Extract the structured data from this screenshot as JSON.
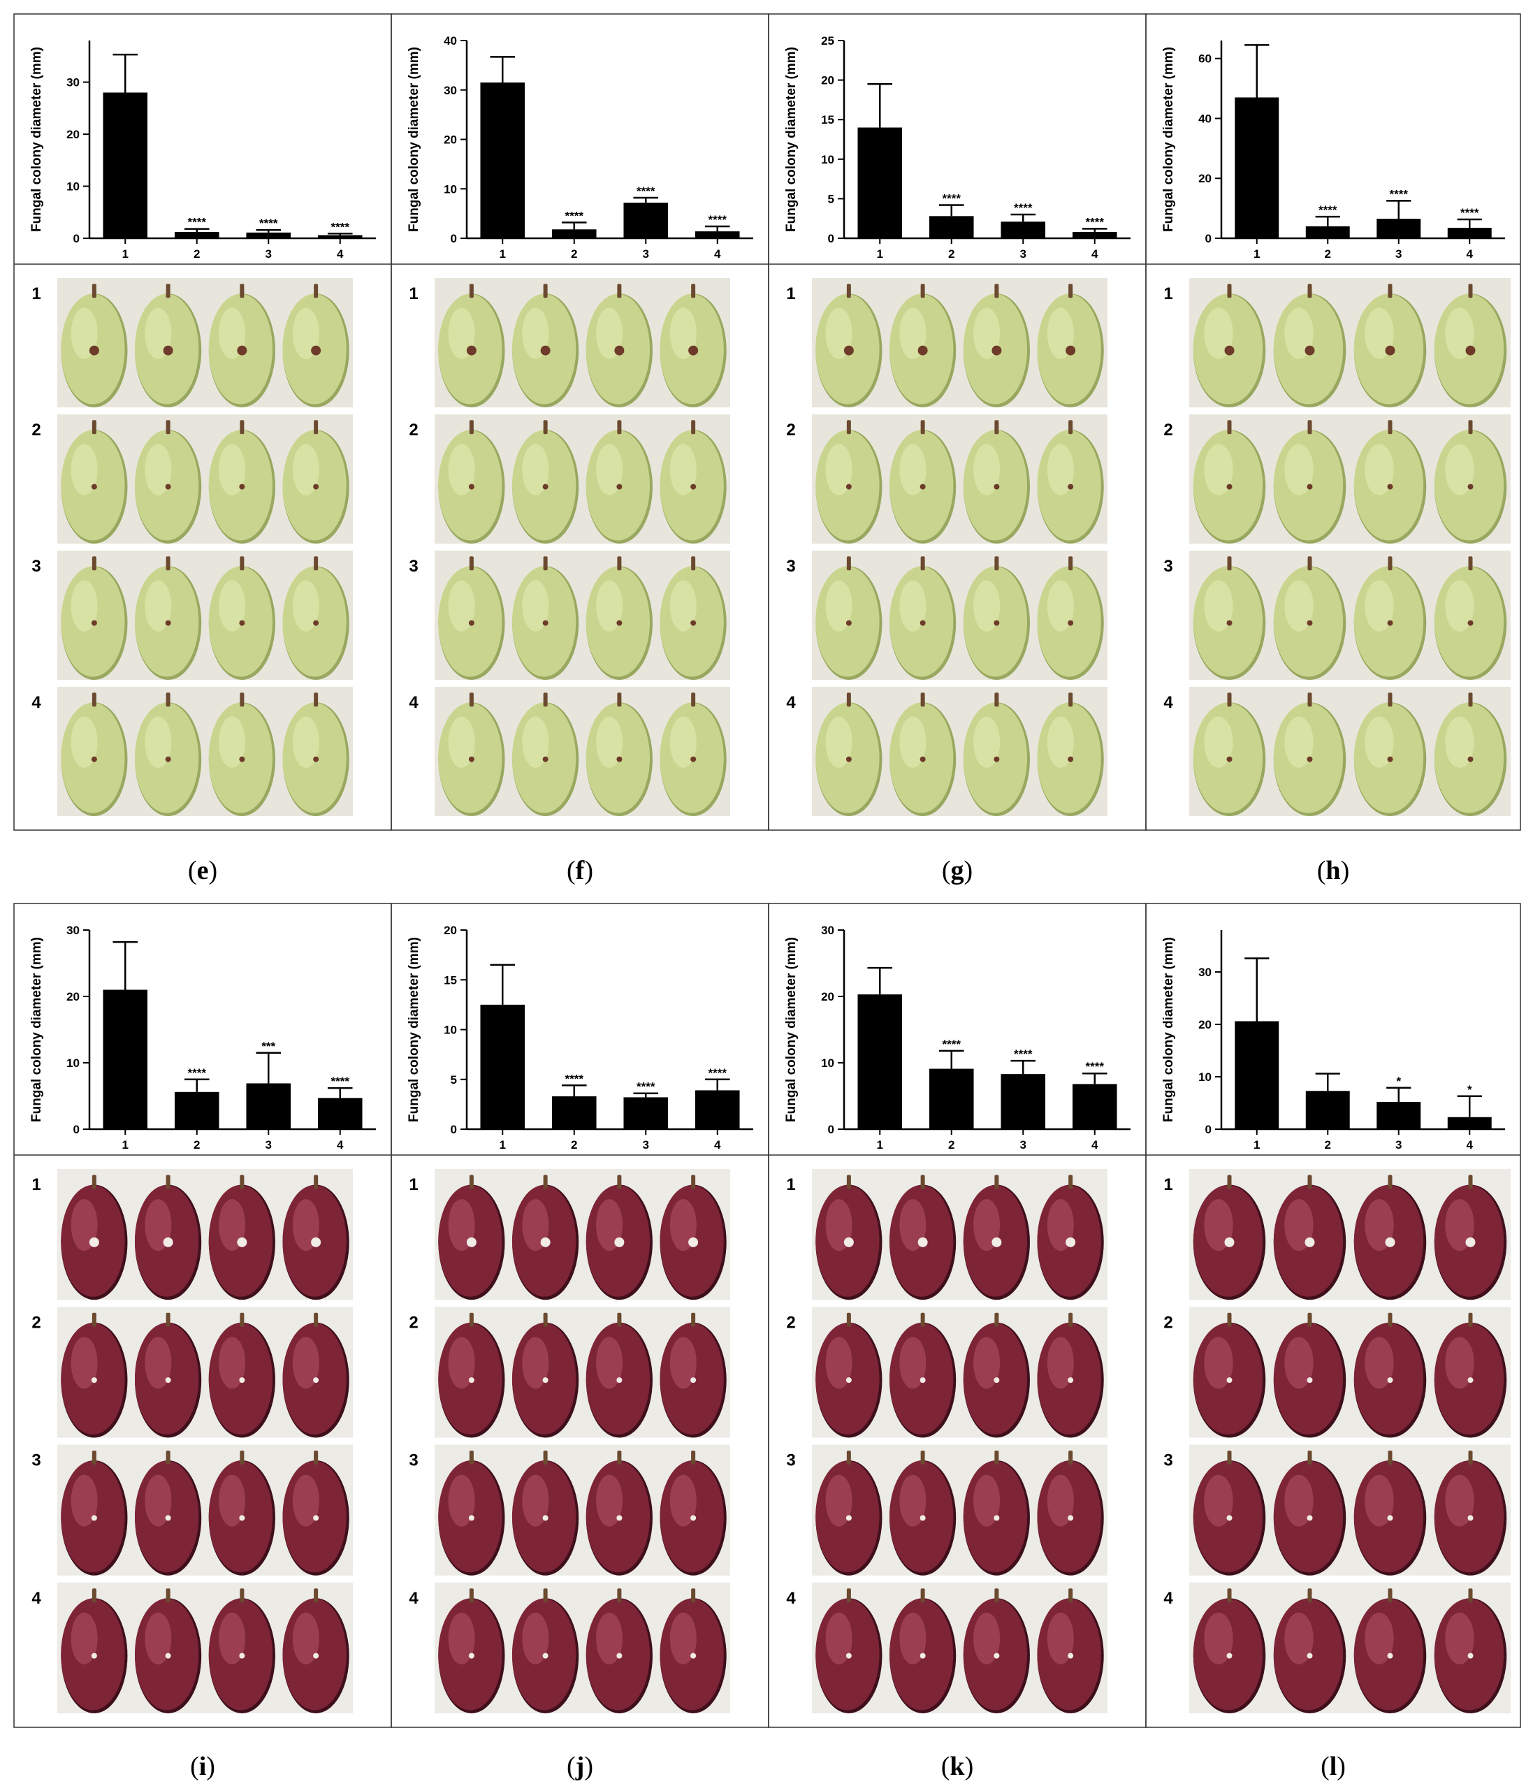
{
  "figure": {
    "captions": [
      {
        "open": "(",
        "letter": "e",
        "close": ")"
      },
      {
        "open": "(",
        "letter": "f",
        "close": ")"
      },
      {
        "open": "(",
        "letter": "g",
        "close": ")"
      },
      {
        "open": "(",
        "letter": "h",
        "close": ")"
      },
      {
        "open": "(",
        "letter": "i",
        "close": ")"
      },
      {
        "open": "(",
        "letter": "j",
        "close": ")"
      },
      {
        "open": "(",
        "letter": "k",
        "close": ")"
      },
      {
        "open": "(",
        "letter": "l",
        "close": ")"
      }
    ],
    "photo_row_labels": [
      "1",
      "2",
      "3",
      "4"
    ],
    "grape_colors": {
      "green": {
        "base": "#c9d58e",
        "light": "#e4ecb6",
        "dark": "#98a860",
        "bg": "#e8e6dc",
        "stem": "#6b4a30",
        "spot": "#6e3b2a"
      },
      "red": {
        "base": "#7d2436",
        "light": "#b4536a",
        "dark": "#3f0f1c",
        "bg": "#ecebe6",
        "stem": "#6b4a30",
        "spot": "#f2ece6"
      }
    }
  },
  "chart_data": [
    {
      "panel": "e",
      "type": "bar",
      "ylabel": "Fungal colony diameter (mm)",
      "categories": [
        "1",
        "2",
        "3",
        "4"
      ],
      "values": [
        28,
        1.2,
        1.1,
        0.6
      ],
      "errors": [
        7.3,
        0.6,
        0.5,
        0.3
      ],
      "significance": [
        "",
        "****",
        "****",
        "****"
      ],
      "ylim": [
        0,
        38
      ],
      "yticks": [
        "0",
        "10",
        "20",
        "30"
      ]
    },
    {
      "panel": "f",
      "type": "bar",
      "ylabel": "Fungal colony diameter (mm)",
      "categories": [
        "1",
        "2",
        "3",
        "4"
      ],
      "values": [
        31.5,
        1.8,
        7.2,
        1.4
      ],
      "errors": [
        5.2,
        1.4,
        1.0,
        1.0
      ],
      "significance": [
        "",
        "****",
        "****",
        "****"
      ],
      "ylim": [
        0,
        40
      ],
      "yticks": [
        "0",
        "10",
        "20",
        "30",
        "40"
      ]
    },
    {
      "panel": "g",
      "type": "bar",
      "ylabel": "Fungal colony diameter (mm)",
      "categories": [
        "1",
        "2",
        "3",
        "4"
      ],
      "values": [
        14,
        2.8,
        2.1,
        0.8
      ],
      "errors": [
        5.5,
        1.4,
        0.9,
        0.4
      ],
      "significance": [
        "",
        "****",
        "****",
        "****"
      ],
      "ylim": [
        0,
        25
      ],
      "yticks": [
        "0",
        "5",
        "10",
        "15",
        "20",
        "25"
      ]
    },
    {
      "panel": "h",
      "type": "bar",
      "ylabel": "Fungal colony diameter (mm)",
      "categories": [
        "1",
        "2",
        "3",
        "4"
      ],
      "values": [
        47,
        4,
        6.5,
        3.5
      ],
      "errors": [
        17.5,
        3.2,
        6.0,
        2.8
      ],
      "significance": [
        "",
        "****",
        "****",
        "****"
      ],
      "ylim": [
        0,
        66
      ],
      "yticks": [
        "0",
        "20",
        "40",
        "60"
      ]
    },
    {
      "panel": "i",
      "type": "bar",
      "ylabel": "Fungal colony diameter (mm)",
      "categories": [
        "1",
        "2",
        "3",
        "4"
      ],
      "values": [
        21,
        5.6,
        6.9,
        4.7
      ],
      "errors": [
        7.2,
        1.9,
        4.6,
        1.5
      ],
      "significance": [
        "",
        "****",
        "***",
        "****"
      ],
      "ylim": [
        0,
        30
      ],
      "yticks": [
        "0",
        "10",
        "20",
        "30"
      ]
    },
    {
      "panel": "j",
      "type": "bar",
      "ylabel": "Fungal colony diameter (mm)",
      "categories": [
        "1",
        "2",
        "3",
        "4"
      ],
      "values": [
        12.5,
        3.3,
        3.2,
        3.9
      ],
      "errors": [
        4.0,
        1.1,
        0.4,
        1.1
      ],
      "significance": [
        "",
        "****",
        "****",
        "****"
      ],
      "ylim": [
        0,
        20
      ],
      "yticks": [
        "0",
        "5",
        "10",
        "15",
        "20"
      ]
    },
    {
      "panel": "k",
      "type": "bar",
      "ylabel": "Fungal colony diameter (mm)",
      "categories": [
        "1",
        "2",
        "3",
        "4"
      ],
      "values": [
        20.3,
        9.1,
        8.3,
        6.8
      ],
      "errors": [
        4.0,
        2.7,
        2.0,
        1.6
      ],
      "significance": [
        "",
        "****",
        "****",
        "****"
      ],
      "ylim": [
        0,
        30
      ],
      "yticks": [
        "0",
        "10",
        "20",
        "30"
      ]
    },
    {
      "panel": "l",
      "type": "bar",
      "ylabel": "Fungal colony diameter (mm)",
      "categories": [
        "1",
        "2",
        "3",
        "4"
      ],
      "values": [
        20.6,
        7.3,
        5.2,
        2.3
      ],
      "errors": [
        12.0,
        3.3,
        2.7,
        4.0
      ],
      "significance": [
        "",
        "",
        "*",
        "*"
      ],
      "ylim": [
        0,
        38
      ],
      "yticks": [
        "0",
        "10",
        "20",
        "30"
      ]
    }
  ]
}
